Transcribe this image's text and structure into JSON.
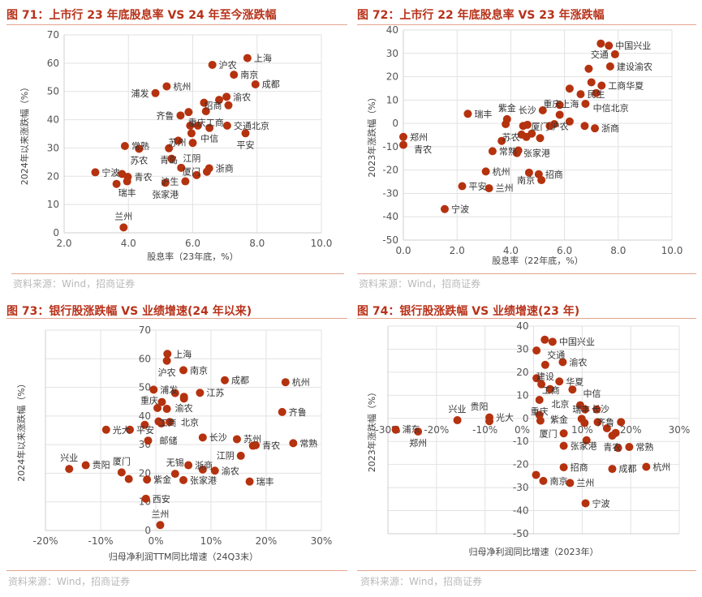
{
  "source": "资料来源：Wind，招商证券",
  "colors": {
    "point": "#b5320f",
    "title": "#b8321a",
    "grid": "#e2e2e2"
  },
  "chart_data": [
    {
      "type": "scatter",
      "title": "图 71：上市行 23 年底股息率 VS 24 年至今涨跌幅",
      "xlabel": "股息率（23年底，%）",
      "ylabel": "2024年以来涨跌幅（%）",
      "xlim": [
        2,
        10
      ],
      "ylim": [
        0,
        70
      ],
      "grid": true,
      "xticks": [
        "2.0",
        "4.0",
        "6.0",
        "8.0",
        "10.0"
      ],
      "xtick_values": [
        2,
        4,
        6,
        8,
        10
      ],
      "yticks": [
        "0",
        "10",
        "20",
        "30",
        "40",
        "50",
        "60",
        "70"
      ],
      "ytick_values": [
        0,
        10,
        20,
        30,
        40,
        50,
        60,
        70
      ],
      "points": [
        {
          "x": 7.7,
          "y": 61.8,
          "label": "上海"
        },
        {
          "x": 6.61,
          "y": 59.4,
          "label": "沪农"
        },
        {
          "x": 7.28,
          "y": 55.9,
          "label": "南京"
        },
        {
          "x": 7.95,
          "y": 52.5,
          "label": "成都"
        },
        {
          "x": 5.19,
          "y": 51.8,
          "label": "杭州"
        },
        {
          "x": 4.84,
          "y": 49.4,
          "label": "浦发"
        },
        {
          "x": 7.05,
          "y": 48.1,
          "label": "渝农"
        },
        {
          "x": 6.82,
          "y": 47.0,
          "label": ""
        },
        {
          "x": 7.11,
          "y": 45.1,
          "label": "招商"
        },
        {
          "x": 6.35,
          "y": 46.0,
          "label": ""
        },
        {
          "x": 5.87,
          "y": 42.7,
          "label": ""
        },
        {
          "x": 5.62,
          "y": 41.5,
          "label": "齐鲁"
        },
        {
          "x": 6.41,
          "y": 43.0,
          "label": "重庆工商"
        },
        {
          "x": 5.92,
          "y": 37.9,
          "label": ""
        },
        {
          "x": 6.16,
          "y": 37.9,
          "label": ""
        },
        {
          "x": 6.52,
          "y": 37.1,
          "label": "中信"
        },
        {
          "x": 7.07,
          "y": 37.9,
          "label": "交通北京"
        },
        {
          "x": 7.64,
          "y": 35.2,
          "label": "平安"
        },
        {
          "x": 5.96,
          "y": 35.2,
          "label": ""
        },
        {
          "x": 5.55,
          "y": 32.6,
          "label": ""
        },
        {
          "x": 6.0,
          "y": 31.8,
          "label": "苏州"
        },
        {
          "x": 3.89,
          "y": 30.7,
          "label": "常熟"
        },
        {
          "x": 4.33,
          "y": 29.7,
          "label": "苏农"
        },
        {
          "x": 5.26,
          "y": 29.9,
          "label": "青岛"
        },
        {
          "x": 5.34,
          "y": 26.2,
          "label": "江阴"
        },
        {
          "x": 5.64,
          "y": 23.0,
          "label": ""
        },
        {
          "x": 6.51,
          "y": 22.8,
          "label": "浙商"
        },
        {
          "x": 6.44,
          "y": 21.6,
          "label": "厦门"
        },
        {
          "x": 6.12,
          "y": 20.4,
          "label": ""
        },
        {
          "x": 2.97,
          "y": 21.4,
          "label": "宁波"
        },
        {
          "x": 3.8,
          "y": 20.8,
          "label": ""
        },
        {
          "x": 3.98,
          "y": 19.8,
          "label": "青农"
        },
        {
          "x": 3.96,
          "y": 18.2,
          "label": "瑞丰"
        },
        {
          "x": 3.63,
          "y": 17.3,
          "label": ""
        },
        {
          "x": 5.15,
          "y": 17.7,
          "label": "张家港"
        },
        {
          "x": 5.77,
          "y": 18.2,
          "label": "沪生"
        },
        {
          "x": 3.85,
          "y": 1.9,
          "label": "兰州"
        }
      ]
    },
    {
      "type": "scatter",
      "title": "图 72：上市行 22 年底股息率 VS 23 年涨跌幅",
      "xlabel": "股息率（22年底，%）",
      "ylabel": "2023年涨跌幅（%）",
      "xlim": [
        0,
        10
      ],
      "ylim": [
        -50,
        40
      ],
      "grid": true,
      "xticks": [
        "0.0",
        "2.0",
        "4.0",
        "6.0",
        "8.0",
        "10.0"
      ],
      "xtick_values": [
        0,
        2,
        4,
        6,
        8,
        10
      ],
      "yticks": [
        "-50",
        "-40",
        "-30",
        "-20",
        "-10",
        "0",
        "10",
        "20",
        "30",
        "40"
      ],
      "ytick_values": [
        -50,
        -40,
        -30,
        -20,
        -10,
        0,
        10,
        20,
        30,
        40
      ],
      "points": [
        {
          "x": 7.35,
          "y": 34.2,
          "label": ""
        },
        {
          "x": 7.65,
          "y": 33.3,
          "label": "中国兴业"
        },
        {
          "x": 7.88,
          "y": 29.6,
          "label": "交通"
        },
        {
          "x": 6.9,
          "y": 23.4,
          "label": ""
        },
        {
          "x": 7.7,
          "y": 24.4,
          "label": "建设渝农"
        },
        {
          "x": 7.0,
          "y": 17.6,
          "label": ""
        },
        {
          "x": 7.38,
          "y": 16.2,
          "label": "工商华夏"
        },
        {
          "x": 6.19,
          "y": 14.9,
          "label": ""
        },
        {
          "x": 6.6,
          "y": 12.5,
          "label": "民生"
        },
        {
          "x": 7.18,
          "y": 13.0,
          "label": "中信北京"
        },
        {
          "x": 5.82,
          "y": 7.9,
          "label": ""
        },
        {
          "x": 6.78,
          "y": 8.4,
          "label": "重庆上海"
        },
        {
          "x": 5.19,
          "y": 5.6,
          "label": "长沙"
        },
        {
          "x": 5.82,
          "y": 3.7,
          "label": "沪农"
        },
        {
          "x": 2.4,
          "y": 4.1,
          "label": "瑞丰"
        },
        {
          "x": 3.86,
          "y": 1.8,
          "label": "紫金"
        },
        {
          "x": 3.81,
          "y": -0.3,
          "label": ""
        },
        {
          "x": 6.19,
          "y": 0.8,
          "label": ""
        },
        {
          "x": 6.75,
          "y": -1.1,
          "label": ""
        },
        {
          "x": 7.13,
          "y": -2.1,
          "label": "浙商"
        },
        {
          "x": 4.46,
          "y": -1.1,
          "label": ""
        },
        {
          "x": 4.62,
          "y": -0.6,
          "label": ""
        },
        {
          "x": 5.45,
          "y": -1.1,
          "label": ""
        },
        {
          "x": 5.62,
          "y": -0.3,
          "label": ""
        },
        {
          "x": 4.4,
          "y": -4.8,
          "label": ""
        },
        {
          "x": 4.58,
          "y": -5.8,
          "label": "苏农"
        },
        {
          "x": 4.78,
          "y": -4.4,
          "label": ""
        },
        {
          "x": 5.09,
          "y": -6.3,
          "label": "厦门"
        },
        {
          "x": 3.66,
          "y": -7.5,
          "label": ""
        },
        {
          "x": 3.32,
          "y": -11.9,
          "label": "常熟"
        },
        {
          "x": 4.28,
          "y": -11.6,
          "label": ""
        },
        {
          "x": 4.23,
          "y": -12.7,
          "label": "张家港"
        },
        {
          "x": 0.0,
          "y": -5.8,
          "label": "郑州"
        },
        {
          "x": 0.0,
          "y": -9.2,
          "label": "青农"
        },
        {
          "x": 3.07,
          "y": -20.6,
          "label": "杭州"
        },
        {
          "x": 4.68,
          "y": -21.1,
          "label": ""
        },
        {
          "x": 5.04,
          "y": -21.8,
          "label": "招商"
        },
        {
          "x": 5.14,
          "y": -24.3,
          "label": "南京"
        },
        {
          "x": 2.19,
          "y": -26.9,
          "label": "平安"
        },
        {
          "x": 3.19,
          "y": -27.8,
          "label": "兰州"
        },
        {
          "x": 1.54,
          "y": -36.7,
          "label": "宁波"
        }
      ]
    },
    {
      "type": "scatter",
      "title": "图 73：银行股涨跌幅 VS 业绩增速(24 年以来)",
      "xlabel": "归母净利润TTM同比增速（24Q3末）",
      "ylabel": "2024年以来涨跌幅（%）",
      "xlim": [
        -20,
        30
      ],
      "ylim": [
        0,
        70
      ],
      "grid": true,
      "xticks": [
        "-20%",
        "-10%",
        "0%",
        "10%",
        "20%",
        "30%"
      ],
      "xtick_values": [
        -20,
        -10,
        0,
        10,
        20,
        30
      ],
      "yticks": [
        "0",
        "10",
        "20",
        "30",
        "40",
        "50",
        "60",
        "70"
      ],
      "ytick_values": [
        0,
        10,
        20,
        30,
        40,
        50,
        60,
        70
      ],
      "points": [
        {
          "x": 2.1,
          "y": 61.7,
          "label": "上海"
        },
        {
          "x": 2.0,
          "y": 59.3,
          "label": "沪农"
        },
        {
          "x": 5.0,
          "y": 56.0,
          "label": "南京"
        },
        {
          "x": 12.5,
          "y": 52.5,
          "label": "成都"
        },
        {
          "x": 23.5,
          "y": 51.8,
          "label": "杭州"
        },
        {
          "x": -0.4,
          "y": 49.2,
          "label": "浦发"
        },
        {
          "x": 3.5,
          "y": 48.0,
          "label": ""
        },
        {
          "x": 8.0,
          "y": 48.1,
          "label": "江苏"
        },
        {
          "x": 5.1,
          "y": 46.7,
          "label": "渝农"
        },
        {
          "x": 5.1,
          "y": 46.1,
          "label": ""
        },
        {
          "x": 1.1,
          "y": 44.9,
          "label": ""
        },
        {
          "x": 0.3,
          "y": 42.8,
          "label": "工商"
        },
        {
          "x": 2.0,
          "y": 42.5,
          "label": "重庆"
        },
        {
          "x": 22.9,
          "y": 41.4,
          "label": "齐鲁"
        },
        {
          "x": 0.5,
          "y": 38.1,
          "label": ""
        },
        {
          "x": 1.0,
          "y": 37.4,
          "label": ""
        },
        {
          "x": 2.5,
          "y": 37.9,
          "label": "北京"
        },
        {
          "x": -2.0,
          "y": 36.9,
          "label": ""
        },
        {
          "x": -9.0,
          "y": 35.2,
          "label": "光大"
        },
        {
          "x": -4.7,
          "y": 35.2,
          "label": "平安"
        },
        {
          "x": -1.4,
          "y": 31.4,
          "label": "邮储"
        },
        {
          "x": 8.5,
          "y": 32.5,
          "label": "长沙"
        },
        {
          "x": 14.7,
          "y": 31.9,
          "label": "苏州"
        },
        {
          "x": 17.6,
          "y": 29.6,
          "label": ""
        },
        {
          "x": 18.1,
          "y": 29.8,
          "label": "青农"
        },
        {
          "x": 24.9,
          "y": 30.5,
          "label": "常熟"
        },
        {
          "x": 15.4,
          "y": 26.1,
          "label": "江阴"
        },
        {
          "x": 5.9,
          "y": 22.8,
          "label": "浙商"
        },
        {
          "x": 8.5,
          "y": 21.3,
          "label": ""
        },
        {
          "x": 10.7,
          "y": 20.9,
          "label": "渝农"
        },
        {
          "x": -12.7,
          "y": 22.8,
          "label": "贵阳"
        },
        {
          "x": -15.7,
          "y": 21.5,
          "label": "兴业"
        },
        {
          "x": -6.2,
          "y": 20.3,
          "label": "厦门"
        },
        {
          "x": -4.9,
          "y": 18.0,
          "label": ""
        },
        {
          "x": -1.6,
          "y": 17.8,
          "label": "紫金"
        },
        {
          "x": 3.5,
          "y": 19.8,
          "label": "无锡"
        },
        {
          "x": 5.0,
          "y": 17.6,
          "label": "张家港"
        },
        {
          "x": 17.0,
          "y": 17.1,
          "label": "瑞丰"
        },
        {
          "x": -1.8,
          "y": 11.1,
          "label": "西安"
        },
        {
          "x": 0.8,
          "y": 1.9,
          "label": "兰州"
        }
      ]
    },
    {
      "type": "scatter",
      "title": "图 74：银行股涨跌幅 VS 业绩增速(23 年)",
      "xlabel": "归母净利润同比增速（2023年）",
      "ylabel": "2023年涨跌幅（%）",
      "xlim": [
        -30,
        30
      ],
      "ylim": [
        -50,
        40
      ],
      "grid": true,
      "xticks": [
        "-30%",
        "-20%",
        "-10%",
        "0%",
        "10%",
        "20%",
        "30%"
      ],
      "xtick_values": [
        -30,
        -20,
        -10,
        0,
        10,
        20,
        30
      ],
      "yticks": [
        "-50",
        "-40",
        "-30",
        "-20",
        "-10",
        "0",
        "10",
        "20",
        "30",
        "40"
      ],
      "ytick_values": [
        -50,
        -40,
        -30,
        -20,
        -10,
        0,
        10,
        20,
        30,
        40
      ],
      "points": [
        {
          "x": 2.3,
          "y": 34.1,
          "label": ""
        },
        {
          "x": 3.9,
          "y": 33.2,
          "label": "中国兴业"
        },
        {
          "x": 0.6,
          "y": 29.4,
          "label": "交通"
        },
        {
          "x": 6.0,
          "y": 24.4,
          "label": "渝农"
        },
        {
          "x": 2.4,
          "y": 23.2,
          "label": "建设"
        },
        {
          "x": 0.6,
          "y": 17.4,
          "label": "工商"
        },
        {
          "x": 5.3,
          "y": 16.0,
          "label": "华夏"
        },
        {
          "x": 1.6,
          "y": 14.8,
          "label": ""
        },
        {
          "x": 3.4,
          "y": 12.7,
          "label": "北京"
        },
        {
          "x": 8.0,
          "y": 12.5,
          "label": "中信"
        },
        {
          "x": 1.2,
          "y": 8.0,
          "label": "重庆"
        },
        {
          "x": 9.6,
          "y": 5.7,
          "label": ""
        },
        {
          "x": 10.6,
          "y": 3.9,
          "label": "长沙"
        },
        {
          "x": 13.0,
          "y": 3.9,
          "label": "瑞丰"
        },
        {
          "x": 1.2,
          "y": 1.5,
          "label": "紫金"
        },
        {
          "x": 1.4,
          "y": -1.0,
          "label": ""
        },
        {
          "x": 9.9,
          "y": -0.2,
          "label": ""
        },
        {
          "x": 10.5,
          "y": -2.0,
          "label": ""
        },
        {
          "x": 13.2,
          "y": -1.6,
          "label": ""
        },
        {
          "x": 18.0,
          "y": -1.6,
          "label": "齐鲁"
        },
        {
          "x": 15.1,
          "y": -4.3,
          "label": ""
        },
        {
          "x": 16.2,
          "y": -7.5,
          "label": "青农"
        },
        {
          "x": 16.9,
          "y": -6.3,
          "label": ""
        },
        {
          "x": 17.4,
          "y": -12.8,
          "label": ""
        },
        {
          "x": 19.7,
          "y": -12.4,
          "label": "常熟"
        },
        {
          "x": 6.2,
          "y": -6.5,
          "label": "厦门"
        },
        {
          "x": 6.2,
          "y": -11.9,
          "label": "张家港"
        },
        {
          "x": 10.9,
          "y": -9.5,
          "label": ""
        },
        {
          "x": 6.2,
          "y": -21.2,
          "label": "招商"
        },
        {
          "x": 16.2,
          "y": -21.9,
          "label": "成都"
        },
        {
          "x": 23.2,
          "y": -21.0,
          "label": "杭州"
        },
        {
          "x": 0.5,
          "y": -24.5,
          "label": ""
        },
        {
          "x": 2.0,
          "y": -27.1,
          "label": "南京"
        },
        {
          "x": 7.5,
          "y": -28.0,
          "label": "兰州"
        },
        {
          "x": 10.7,
          "y": -36.8,
          "label": "宁波"
        },
        {
          "x": -28.4,
          "y": -4.9,
          "label": "浦东"
        },
        {
          "x": -23.8,
          "y": -5.7,
          "label": "郑州"
        },
        {
          "x": -15.7,
          "y": -0.8,
          "label": "兴业"
        },
        {
          "x": -9.1,
          "y": 0.4,
          "label": "光大"
        },
        {
          "x": -9.1,
          "y": -1.2,
          "label": "贵阳"
        }
      ]
    }
  ]
}
